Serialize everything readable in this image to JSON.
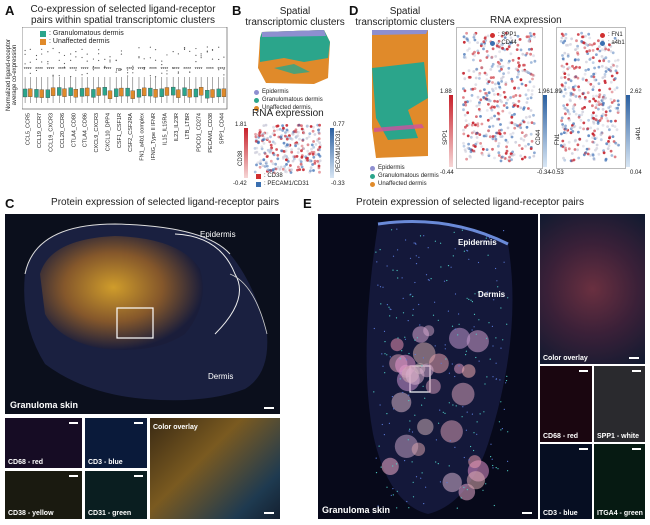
{
  "panelA": {
    "letter": "A",
    "title_line1": "Co-expression of selected ligand-receptor",
    "title_line2": "pairs within spatial transcriptomic clusters",
    "ylabel_line1": "Normalized ligand-receptor",
    "ylabel_line2": "average co-expression",
    "legend": [
      {
        "label": ": Granulomatous dermis",
        "color": "#2ba58b"
      },
      {
        "label": ": Unaffected dermis",
        "color": "#e08a2a"
      }
    ],
    "categories": [
      "CCL5_CCR5",
      "CCL19_CCR7",
      "CCL19_CXCR3",
      "CCL20_CCR6",
      "CTLA4_CD80",
      "CTLA4_CD86",
      "CXCL9_CXCR3",
      "CXCL10_DPP4",
      "CSF1_CSF1R",
      "CSF2_CSF2RA",
      "FN1_a4b1 complex",
      "IFNG_Type II IFNR",
      "IL15_IL15RA",
      "IL23_IL23R",
      "LTB_LTBR",
      "PDCD1_CD274",
      "PECAM1_CD38",
      "SPP1_CD44"
    ],
    "stars": [
      "****",
      "****",
      "****",
      "****",
      "****",
      "****",
      "****",
      "****",
      "ns",
      "****",
      "****",
      "****",
      "****",
      "****",
      "****",
      "****",
      "****",
      "****"
    ]
  },
  "panelB": {
    "letter": "B",
    "title_line1": "Spatial",
    "title_line2": "transcriptomic clusters",
    "legend": [
      {
        "label": "Epidermis",
        "color": "#8e8fd0"
      },
      {
        "label": "Granulomatous dermis",
        "color": "#2ba58b"
      },
      {
        "label": "Unaffected dermis",
        "color": "#e08a2a"
      }
    ],
    "rna_title": "RNA expression",
    "left_bar_label": "CD38",
    "left_top": "1.81",
    "left_bottom": "-0.42",
    "right_bar_label": "PECAM1/CD31",
    "right_top": "0.77",
    "right_bottom": "-0.33",
    "legend2": [
      {
        "label": ": CD38",
        "color": "#d03030"
      },
      {
        "label": ": PECAM1/CD31",
        "color": "#3a6fb0"
      }
    ]
  },
  "panelD": {
    "letter": "D",
    "title_line1": "Spatial",
    "title_line2": "transcriptomic clusters",
    "rna_title": "RNA expression",
    "legend": [
      {
        "label": "Epidermis",
        "color": "#8e8fd0"
      },
      {
        "label": "Granulomatous dermis",
        "color": "#2ba58b"
      },
      {
        "label": "Unaffected dermis",
        "color": "#e08a2a"
      }
    ],
    "m1": {
      "legend": [
        {
          "label": ": SPP1",
          "color": "#d03030"
        },
        {
          "label": ": CD44",
          "color": "#3a6fb0"
        }
      ],
      "left_label": "SPP1",
      "left_top": "1.88",
      "left_bottom": "-0.44",
      "right_label": "CD44",
      "right_top": "1.96",
      "right_bottom": "-0.34"
    },
    "m2": {
      "legend": [
        {
          "label": ": FN1",
          "color": "#d03030"
        },
        {
          "label": ": a4b1",
          "color": "#3a6fb0"
        }
      ],
      "left_label": "FN1",
      "left_top": "1.89",
      "left_bottom": "-0.53",
      "right_label": "a4b1",
      "right_top": "2.62",
      "right_bottom": "0.04"
    }
  },
  "panelC": {
    "letter": "C",
    "title": "Protein expression of selected ligand-receptor pairs",
    "epidermis": "Epidermis",
    "dermis": "Dermis",
    "caption": "Granuloma skin",
    "subpanels": [
      "CD68 - red",
      "CD3 - blue",
      "CD38 - yellow",
      "CD31 - green",
      "Color overlay"
    ]
  },
  "panelE": {
    "letter": "E",
    "title": "Protein expression of selected ligand-receptor pairs",
    "epidermis": "Epidermis",
    "dermis": "Dermis",
    "caption": "Granuloma skin",
    "overlay": "Color overlay",
    "subpanels": [
      "CD68 - red",
      "SPP1 - white",
      "CD3 - blue",
      "ITGA4 - green"
    ]
  }
}
